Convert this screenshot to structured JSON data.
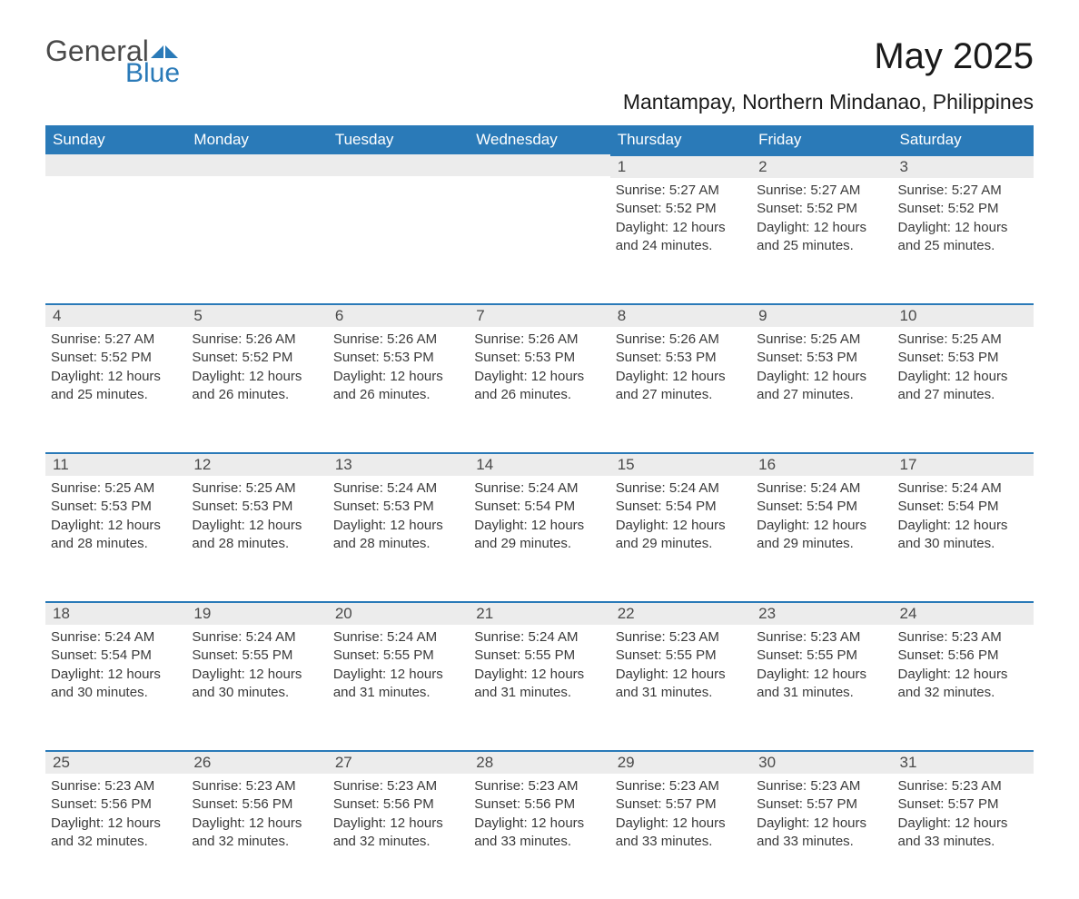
{
  "logo": {
    "general": "General",
    "blue": "Blue"
  },
  "title": "May 2025",
  "location": "Mantampay, Northern Mindanao, Philippines",
  "colors": {
    "header_bg": "#2a7ab8",
    "header_text": "#ffffff",
    "daynum_bg": "#ececec",
    "daynum_border": "#2a7ab8",
    "text": "#333333",
    "logo_gray": "#4a4a4a",
    "logo_blue": "#2a7ab8",
    "page_bg": "#ffffff"
  },
  "font_family": "Arial",
  "day_headers": [
    "Sunday",
    "Monday",
    "Tuesday",
    "Wednesday",
    "Thursday",
    "Friday",
    "Saturday"
  ],
  "weeks": [
    [
      null,
      null,
      null,
      null,
      {
        "n": "1",
        "sunrise": "5:27 AM",
        "sunset": "5:52 PM",
        "daylight": "12 hours and 24 minutes."
      },
      {
        "n": "2",
        "sunrise": "5:27 AM",
        "sunset": "5:52 PM",
        "daylight": "12 hours and 25 minutes."
      },
      {
        "n": "3",
        "sunrise": "5:27 AM",
        "sunset": "5:52 PM",
        "daylight": "12 hours and 25 minutes."
      }
    ],
    [
      {
        "n": "4",
        "sunrise": "5:27 AM",
        "sunset": "5:52 PM",
        "daylight": "12 hours and 25 minutes."
      },
      {
        "n": "5",
        "sunrise": "5:26 AM",
        "sunset": "5:52 PM",
        "daylight": "12 hours and 26 minutes."
      },
      {
        "n": "6",
        "sunrise": "5:26 AM",
        "sunset": "5:53 PM",
        "daylight": "12 hours and 26 minutes."
      },
      {
        "n": "7",
        "sunrise": "5:26 AM",
        "sunset": "5:53 PM",
        "daylight": "12 hours and 26 minutes."
      },
      {
        "n": "8",
        "sunrise": "5:26 AM",
        "sunset": "5:53 PM",
        "daylight": "12 hours and 27 minutes."
      },
      {
        "n": "9",
        "sunrise": "5:25 AM",
        "sunset": "5:53 PM",
        "daylight": "12 hours and 27 minutes."
      },
      {
        "n": "10",
        "sunrise": "5:25 AM",
        "sunset": "5:53 PM",
        "daylight": "12 hours and 27 minutes."
      }
    ],
    [
      {
        "n": "11",
        "sunrise": "5:25 AM",
        "sunset": "5:53 PM",
        "daylight": "12 hours and 28 minutes."
      },
      {
        "n": "12",
        "sunrise": "5:25 AM",
        "sunset": "5:53 PM",
        "daylight": "12 hours and 28 minutes."
      },
      {
        "n": "13",
        "sunrise": "5:24 AM",
        "sunset": "5:53 PM",
        "daylight": "12 hours and 28 minutes."
      },
      {
        "n": "14",
        "sunrise": "5:24 AM",
        "sunset": "5:54 PM",
        "daylight": "12 hours and 29 minutes."
      },
      {
        "n": "15",
        "sunrise": "5:24 AM",
        "sunset": "5:54 PM",
        "daylight": "12 hours and 29 minutes."
      },
      {
        "n": "16",
        "sunrise": "5:24 AM",
        "sunset": "5:54 PM",
        "daylight": "12 hours and 29 minutes."
      },
      {
        "n": "17",
        "sunrise": "5:24 AM",
        "sunset": "5:54 PM",
        "daylight": "12 hours and 30 minutes."
      }
    ],
    [
      {
        "n": "18",
        "sunrise": "5:24 AM",
        "sunset": "5:54 PM",
        "daylight": "12 hours and 30 minutes."
      },
      {
        "n": "19",
        "sunrise": "5:24 AM",
        "sunset": "5:55 PM",
        "daylight": "12 hours and 30 minutes."
      },
      {
        "n": "20",
        "sunrise": "5:24 AM",
        "sunset": "5:55 PM",
        "daylight": "12 hours and 31 minutes."
      },
      {
        "n": "21",
        "sunrise": "5:24 AM",
        "sunset": "5:55 PM",
        "daylight": "12 hours and 31 minutes."
      },
      {
        "n": "22",
        "sunrise": "5:23 AM",
        "sunset": "5:55 PM",
        "daylight": "12 hours and 31 minutes."
      },
      {
        "n": "23",
        "sunrise": "5:23 AM",
        "sunset": "5:55 PM",
        "daylight": "12 hours and 31 minutes."
      },
      {
        "n": "24",
        "sunrise": "5:23 AM",
        "sunset": "5:56 PM",
        "daylight": "12 hours and 32 minutes."
      }
    ],
    [
      {
        "n": "25",
        "sunrise": "5:23 AM",
        "sunset": "5:56 PM",
        "daylight": "12 hours and 32 minutes."
      },
      {
        "n": "26",
        "sunrise": "5:23 AM",
        "sunset": "5:56 PM",
        "daylight": "12 hours and 32 minutes."
      },
      {
        "n": "27",
        "sunrise": "5:23 AM",
        "sunset": "5:56 PM",
        "daylight": "12 hours and 32 minutes."
      },
      {
        "n": "28",
        "sunrise": "5:23 AM",
        "sunset": "5:56 PM",
        "daylight": "12 hours and 33 minutes."
      },
      {
        "n": "29",
        "sunrise": "5:23 AM",
        "sunset": "5:57 PM",
        "daylight": "12 hours and 33 minutes."
      },
      {
        "n": "30",
        "sunrise": "5:23 AM",
        "sunset": "5:57 PM",
        "daylight": "12 hours and 33 minutes."
      },
      {
        "n": "31",
        "sunrise": "5:23 AM",
        "sunset": "5:57 PM",
        "daylight": "12 hours and 33 minutes."
      }
    ]
  ],
  "labels": {
    "sunrise": "Sunrise: ",
    "sunset": "Sunset: ",
    "daylight": "Daylight: "
  }
}
